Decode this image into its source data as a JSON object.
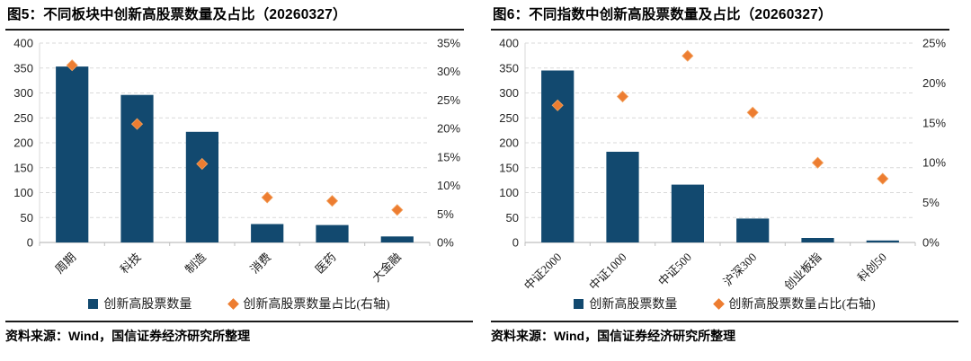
{
  "colors": {
    "bar": "#12496F",
    "marker": "#ED7D31",
    "marker_edge": "#F2A15E",
    "grid": "#D9D9D9",
    "axis_line": "#BFBFBF",
    "axis_text": "#262626"
  },
  "sources": [
    "资料来源：Wind，国信证券经济研究所整理",
    "资料来源：Wind，国信证券经济研究所整理"
  ],
  "chart_data": [
    {
      "type": "bar",
      "title": "图5：不同板块中创新高股票数量及占比（20260327）",
      "categories": [
        "周期",
        "科技",
        "制造",
        "消费",
        "医药",
        "大金融"
      ],
      "series": [
        {
          "name": "创新高股票数量",
          "kind": "bar",
          "axis": "left",
          "values": [
            353,
            296,
            222,
            37,
            35,
            12
          ]
        },
        {
          "name": "创新高股票数量占比(右轴)",
          "kind": "scatter-diamond",
          "axis": "right",
          "values": [
            31.1,
            20.8,
            13.8,
            7.9,
            7.3,
            5.7
          ]
        }
      ],
      "left_axis": {
        "min": 0,
        "max": 400,
        "step": 50
      },
      "right_axis": {
        "min": 0,
        "max": 35,
        "step": 5,
        "suffix": "%"
      },
      "grid": "horizontal-dashed",
      "legend_position": "bottom"
    },
    {
      "type": "bar",
      "title": "图6：不同指数中创新高股票数量及占比（20260327）",
      "categories": [
        "中证2000",
        "中证1000",
        "中证500",
        "沪深300",
        "创业板指",
        "科创50"
      ],
      "series": [
        {
          "name": "创新高股票数量",
          "kind": "bar",
          "axis": "left",
          "values": [
            345,
            182,
            116,
            48,
            9,
            4
          ]
        },
        {
          "name": "创新高股票数量占比(右轴)",
          "kind": "scatter-diamond",
          "axis": "right",
          "values": [
            17.2,
            18.3,
            23.4,
            16.3,
            10.0,
            8.0
          ]
        }
      ],
      "left_axis": {
        "min": 0,
        "max": 400,
        "step": 50
      },
      "right_axis": {
        "min": 0,
        "max": 25,
        "step": 5,
        "suffix": "%"
      },
      "grid": "horizontal-dashed",
      "legend_position": "bottom"
    }
  ]
}
